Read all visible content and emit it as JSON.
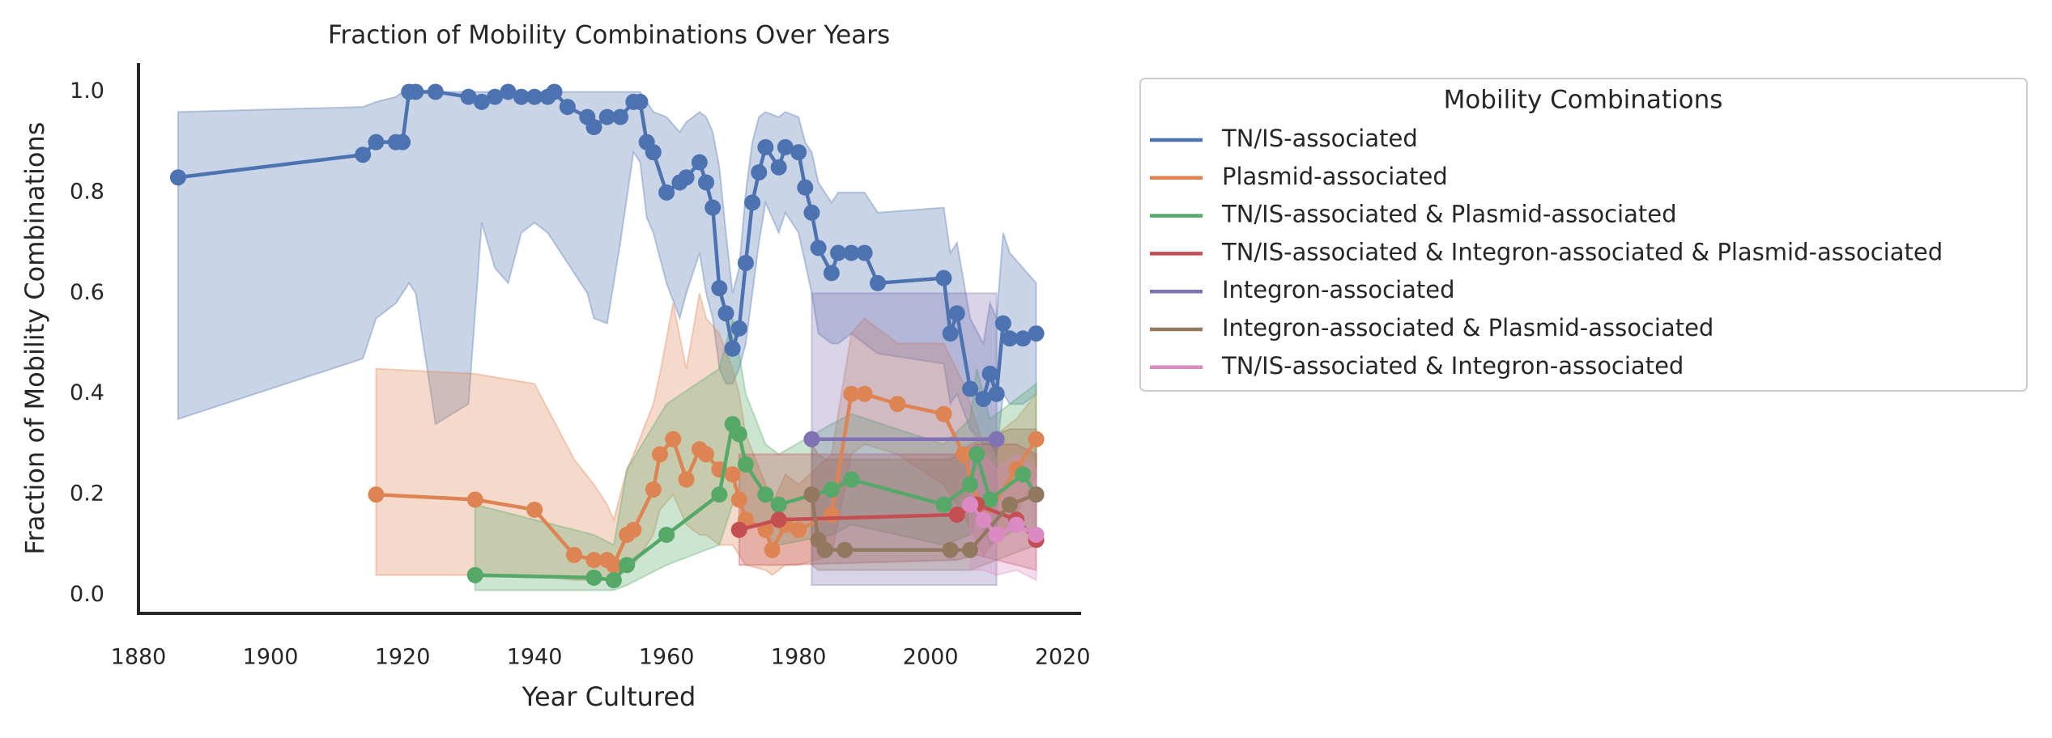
{
  "chart_data": {
    "type": "line",
    "title": "Fraction of Mobility Combinations Over Years",
    "x_label": "Year Cultured",
    "y_label": "Fraction of Mobility Combinations",
    "legend_title": "Mobility Combinations",
    "legend_loc": "outside right",
    "grid": false,
    "xlim": [
      1880,
      2022.8
    ],
    "ylim": [
      -0.036,
      1.057
    ],
    "xticks": [
      1880,
      1900,
      1920,
      1940,
      1960,
      1980,
      2000,
      2020
    ],
    "yticks": [
      {
        "value": 0,
        "label": "0.0"
      },
      0.2,
      0.4,
      0.6,
      0.8,
      {
        "value": 1,
        "label": "1.0"
      }
    ],
    "series": [
      {
        "name": "TN/IS-associated",
        "color": "#4c72b0",
        "x": [
          1886,
          1914,
          1916,
          1919,
          1920,
          1921,
          1922,
          1925,
          1930,
          1932,
          1934,
          1936,
          1938,
          1940,
          1942,
          1943,
          1945,
          1948,
          1949,
          1951,
          1953,
          1955,
          1956,
          1957,
          1958,
          1960,
          1962,
          1963,
          1965,
          1966,
          1967,
          1968,
          1969,
          1970,
          1971,
          1972,
          1973,
          1974,
          1975,
          1977,
          1978,
          1980,
          1981,
          1982,
          1983,
          1985,
          1986,
          1988,
          1990,
          1992,
          2002,
          2003,
          2004,
          2006,
          2008,
          2009,
          2010,
          2011,
          2012,
          2014,
          2016
        ],
        "values": [
          0.83,
          0.875,
          0.9,
          0.9,
          0.9,
          1.0,
          1.0,
          1.0,
          0.99,
          0.98,
          0.99,
          1.0,
          0.99,
          0.99,
          0.99,
          1.0,
          0.97,
          0.95,
          0.93,
          0.95,
          0.95,
          0.98,
          0.98,
          0.9,
          0.88,
          0.8,
          0.82,
          0.83,
          0.86,
          0.82,
          0.77,
          0.61,
          0.56,
          0.49,
          0.53,
          0.66,
          0.78,
          0.84,
          0.89,
          0.85,
          0.89,
          0.88,
          0.81,
          0.76,
          0.69,
          0.64,
          0.68,
          0.68,
          0.68,
          0.62,
          0.63,
          0.52,
          0.56,
          0.41,
          0.39,
          0.44,
          0.4,
          0.54,
          0.51,
          0.51,
          0.52
        ],
        "ci_lower": [
          0.35,
          0.47,
          0.55,
          0.58,
          0.6,
          0.62,
          0.6,
          0.34,
          0.38,
          0.74,
          0.65,
          0.62,
          0.72,
          0.74,
          0.72,
          0.7,
          0.66,
          0.6,
          0.55,
          0.54,
          0.7,
          0.88,
          0.86,
          0.75,
          0.72,
          0.62,
          0.55,
          0.6,
          0.68,
          0.6,
          0.55,
          0.45,
          0.42,
          0.42,
          0.45,
          0.5,
          0.6,
          0.7,
          0.78,
          0.72,
          0.76,
          0.72,
          0.66,
          0.6,
          0.52,
          0.5,
          0.5,
          0.52,
          0.5,
          0.48,
          0.46,
          0.38,
          0.4,
          0.33,
          0.3,
          0.3,
          0.28,
          0.4,
          0.38,
          0.38,
          0.4
        ],
        "ci_upper": [
          0.96,
          0.97,
          0.98,
          0.99,
          1,
          1,
          1,
          1,
          1,
          1,
          1,
          1,
          1,
          1,
          1,
          1,
          1,
          1,
          1,
          1,
          1,
          1,
          1,
          0.98,
          0.96,
          0.95,
          0.92,
          0.94,
          0.96,
          0.95,
          0.92,
          0.85,
          0.72,
          0.6,
          0.65,
          0.8,
          0.9,
          0.95,
          0.96,
          0.95,
          0.96,
          0.95,
          0.9,
          0.88,
          0.82,
          0.78,
          0.8,
          0.8,
          0.8,
          0.76,
          0.77,
          0.68,
          0.7,
          0.55,
          0.5,
          0.58,
          0.55,
          0.72,
          0.68,
          0.65,
          0.62
        ]
      },
      {
        "name": "Plasmid-associated",
        "color": "#dd8452",
        "x": [
          1916,
          1931,
          1940,
          1946,
          1949,
          1951,
          1952,
          1954,
          1955,
          1958,
          1959,
          1961,
          1963,
          1965,
          1966,
          1968,
          1970,
          1971,
          1972,
          1975,
          1976,
          1978,
          1980,
          1985,
          1988,
          1990,
          1995,
          2002,
          2005,
          2008,
          2013,
          2016
        ],
        "values": [
          0.2,
          0.19,
          0.17,
          0.08,
          0.07,
          0.07,
          0.06,
          0.12,
          0.13,
          0.21,
          0.28,
          0.31,
          0.23,
          0.29,
          0.28,
          0.25,
          0.24,
          0.19,
          0.15,
          0.13,
          0.09,
          0.14,
          0.13,
          0.16,
          0.4,
          0.4,
          0.38,
          0.36,
          0.28,
          0.15,
          0.25,
          0.31
        ],
        "ci_lower": [
          0.04,
          0.04,
          0.04,
          0.03,
          0.03,
          0.03,
          0.03,
          0.05,
          0.06,
          0.12,
          0.17,
          0.2,
          0.14,
          0.12,
          0.12,
          0.1,
          0.1,
          0.08,
          0.06,
          0.05,
          0.04,
          0.06,
          0.06,
          0.08,
          0.28,
          0.3,
          0.28,
          0.22,
          0.16,
          0.08,
          0.16,
          0.24
        ],
        "ci_upper": [
          0.45,
          0.44,
          0.42,
          0.27,
          0.22,
          0.18,
          0.15,
          0.25,
          0.28,
          0.38,
          0.44,
          0.58,
          0.45,
          0.6,
          0.55,
          0.52,
          0.45,
          0.4,
          0.32,
          0.22,
          0.18,
          0.24,
          0.22,
          0.28,
          0.52,
          0.55,
          0.5,
          0.5,
          0.42,
          0.3,
          0.35,
          0.4
        ]
      },
      {
        "name": "TN/IS-associated & Plasmid-associated",
        "color": "#55a868",
        "x": [
          1931,
          1949,
          1952,
          1954,
          1960,
          1968,
          1970,
          1971,
          1972,
          1975,
          1977,
          1985,
          1988,
          2002,
          2006,
          2007,
          2009,
          2014,
          2016
        ],
        "values": [
          0.04,
          0.035,
          0.03,
          0.06,
          0.12,
          0.2,
          0.34,
          0.32,
          0.26,
          0.2,
          0.18,
          0.21,
          0.23,
          0.18,
          0.22,
          0.28,
          0.19,
          0.24,
          0.2
        ],
        "ci_lower": [
          0.01,
          0.01,
          0.01,
          0.02,
          0.06,
          0.1,
          0.18,
          0.2,
          0.16,
          0.12,
          0.1,
          0.12,
          0.14,
          0.1,
          0.12,
          0.16,
          0.1,
          0.14,
          0.12
        ],
        "ci_upper": [
          0.18,
          0.12,
          0.1,
          0.25,
          0.38,
          0.45,
          0.55,
          0.48,
          0.4,
          0.3,
          0.28,
          0.34,
          0.36,
          0.3,
          0.35,
          0.45,
          0.35,
          0.4,
          0.42
        ]
      },
      {
        "name": "TN/IS-associated & Integron-associated & Plasmid-associated",
        "color": "#c44e52",
        "x": [
          1971,
          1977,
          2004,
          2007,
          2013,
          2016
        ],
        "values": [
          0.13,
          0.15,
          0.16,
          0.18,
          0.15,
          0.11
        ],
        "ci_lower": [
          0.06,
          0.06,
          0.07,
          0.08,
          0.06,
          0.05
        ],
        "ci_upper": [
          0.28,
          0.28,
          0.28,
          0.3,
          0.3,
          0.28
        ]
      },
      {
        "name": "Integron-associated",
        "color": "#8172b3",
        "x": [
          1982,
          2010
        ],
        "values": [
          0.31,
          0.31
        ],
        "ci_lower": [
          0.02,
          0.02
        ],
        "ci_upper": [
          0.6,
          0.6
        ]
      },
      {
        "name": "Integron-associated & Plasmid-associated",
        "color": "#937860",
        "x": [
          1982,
          1983,
          1984,
          1987,
          2003,
          2006,
          2012,
          2016
        ],
        "values": [
          0.2,
          0.11,
          0.09,
          0.09,
          0.09,
          0.09,
          0.18,
          0.2
        ],
        "ci_lower": [
          0.06,
          0.05,
          0.05,
          0.05,
          0.05,
          0.05,
          0.08,
          0.1
        ],
        "ci_upper": [
          0.3,
          0.28,
          0.27,
          0.27,
          0.27,
          0.3,
          0.33,
          0.33
        ]
      },
      {
        "name": "TN/IS-associated & Integron-associated",
        "color": "#da8bc3",
        "x": [
          2006,
          2008,
          2010,
          2013,
          2016
        ],
        "values": [
          0.18,
          0.15,
          0.12,
          0.14,
          0.12
        ],
        "ci_lower": [
          0.05,
          0.05,
          0.04,
          0.05,
          0.03
        ],
        "ci_upper": [
          0.3,
          0.28,
          0.25,
          0.28,
          0.25
        ]
      }
    ]
  }
}
